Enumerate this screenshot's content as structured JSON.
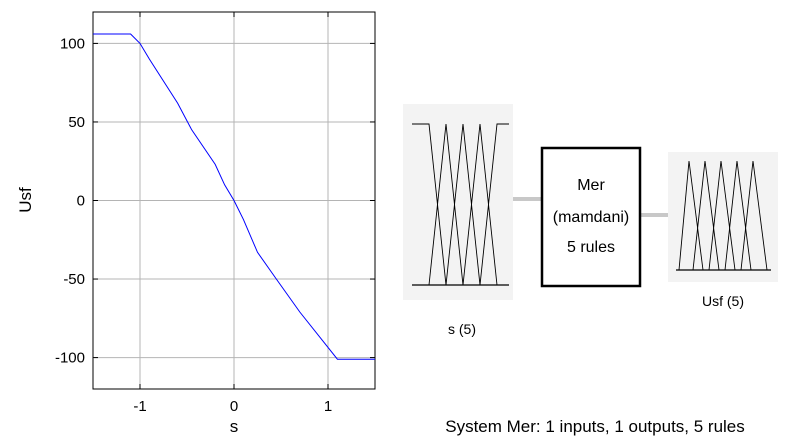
{
  "chart_data": {
    "type": "line",
    "xlabel": "s",
    "ylabel": "Usf",
    "xlim": [
      -1.5,
      1.5
    ],
    "ylim": [
      -120,
      120
    ],
    "x_ticks": [
      -1,
      0,
      1
    ],
    "y_ticks": [
      100,
      50,
      0,
      -50,
      -100
    ],
    "x_tick_labels": [
      "-1",
      "0",
      "1"
    ],
    "y_tick_labels": [
      "100",
      "50",
      "0",
      "-50",
      "-100"
    ],
    "grid": true,
    "series": [
      {
        "color": "#0000ff",
        "x": [
          -1.5,
          -1.1,
          -1.0,
          -0.9,
          -0.6,
          -0.45,
          -0.2,
          -0.1,
          0.0,
          0.1,
          0.25,
          0.45,
          0.7,
          1.1,
          1.5
        ],
        "y": [
          106,
          106,
          100,
          90,
          62,
          45,
          23,
          10,
          0,
          -12,
          -33,
          -50,
          -71,
          -101,
          -101
        ]
      }
    ]
  },
  "fis": {
    "system_name": "Mer",
    "system_type": "(mamdani)",
    "rule_count": "5 rules",
    "input_label": "s (5)",
    "output_label": "Usf (5)",
    "summary": "System Mer: 1 inputs, 1 outputs, 5 rules"
  }
}
